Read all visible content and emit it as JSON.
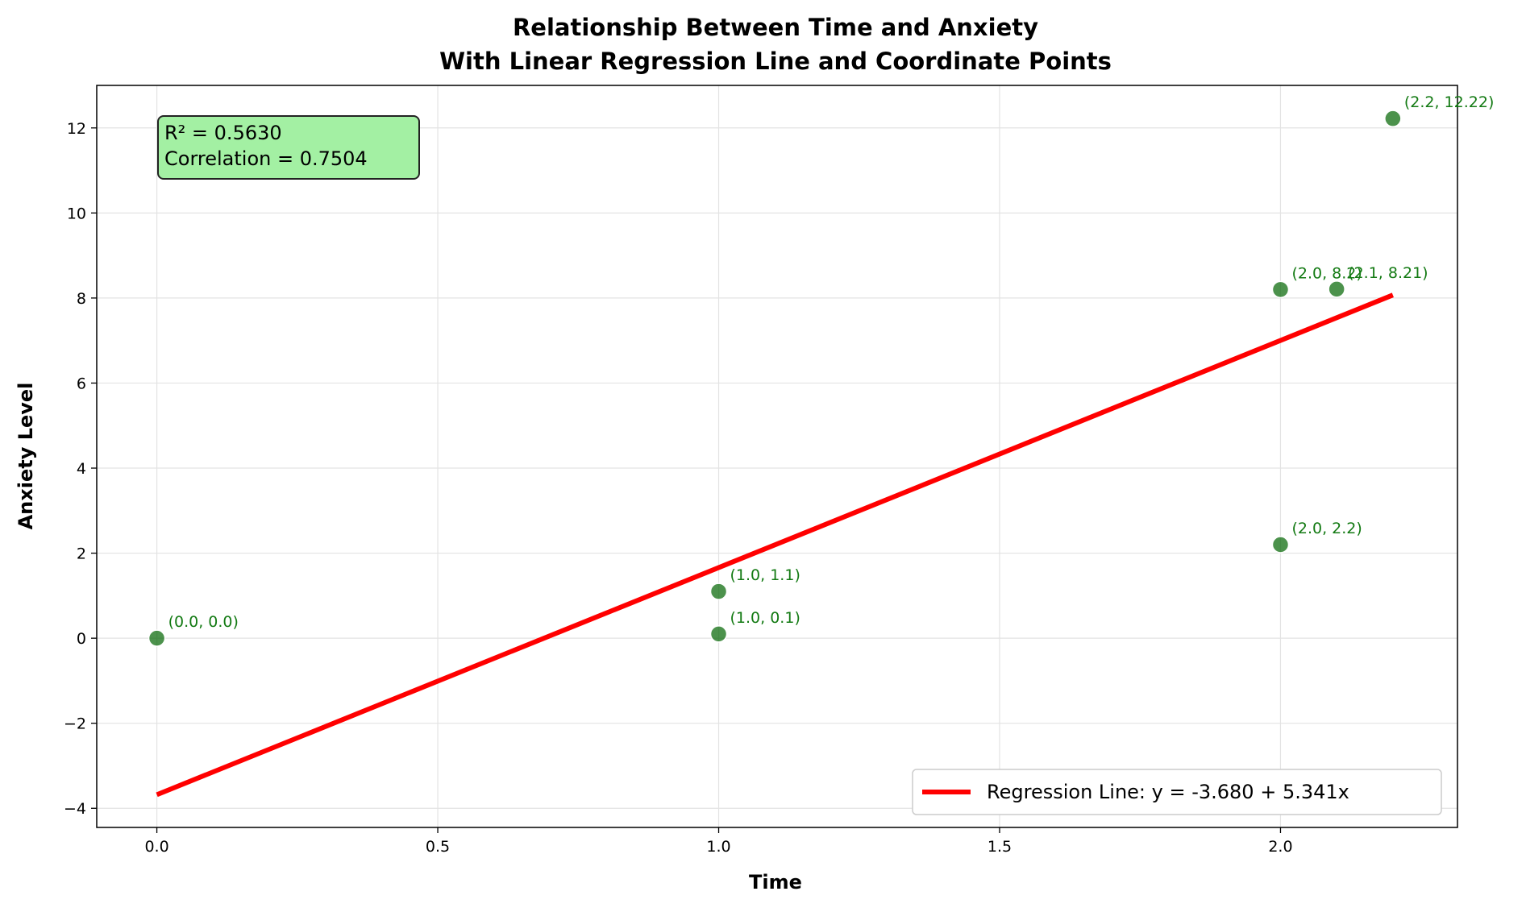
{
  "chart_data": {
    "type": "scatter",
    "title_line1": "Relationship Between Time and Anxiety",
    "title_line2": "With Linear Regression Line and Coordinate Points",
    "xlabel": "Time",
    "ylabel": "Anxiety Level",
    "xlim": [
      -0.107,
      2.315
    ],
    "ylim": [
      -4.45,
      13.0
    ],
    "xticks": [
      0.0,
      0.5,
      1.0,
      1.5,
      2.0
    ],
    "xtick_labels": [
      "0.0",
      "0.5",
      "1.0",
      "1.5",
      "2.0"
    ],
    "yticks": [
      -4,
      -2,
      0,
      2,
      4,
      6,
      8,
      10,
      12
    ],
    "ytick_labels": [
      "−4",
      "−2",
      "0",
      "2",
      "4",
      "6",
      "8",
      "10",
      "12"
    ],
    "grid": true,
    "points": [
      {
        "x": 0.0,
        "y": 0.0,
        "label": "(0.0, 0.0)"
      },
      {
        "x": 1.0,
        "y": 1.1,
        "label": "(1.0, 1.1)"
      },
      {
        "x": 1.0,
        "y": 0.1,
        "label": "(1.0, 0.1)"
      },
      {
        "x": 2.0,
        "y": 8.2,
        "label": "(2.0, 8.2)"
      },
      {
        "x": 2.0,
        "y": 2.2,
        "label": "(2.0, 2.2)"
      },
      {
        "x": 2.1,
        "y": 8.21,
        "label": "(2.1, 8.21)"
      },
      {
        "x": 2.2,
        "y": 12.22,
        "label": "(2.2, 12.22)"
      }
    ],
    "regression": {
      "intercept": -3.68,
      "slope": 5.341,
      "x_range": [
        0.0,
        2.2
      ],
      "legend_label": "Regression Line: y = -3.680 + 5.341x",
      "color": "#ff0000"
    },
    "stats": {
      "r2_text": "R² = 0.5630",
      "correlation_text": "Correlation = 0.7504",
      "box_color": "#a3f0a3"
    },
    "legend_position": "lower-right",
    "point_color": "#006400",
    "label_color": "#137a13"
  }
}
